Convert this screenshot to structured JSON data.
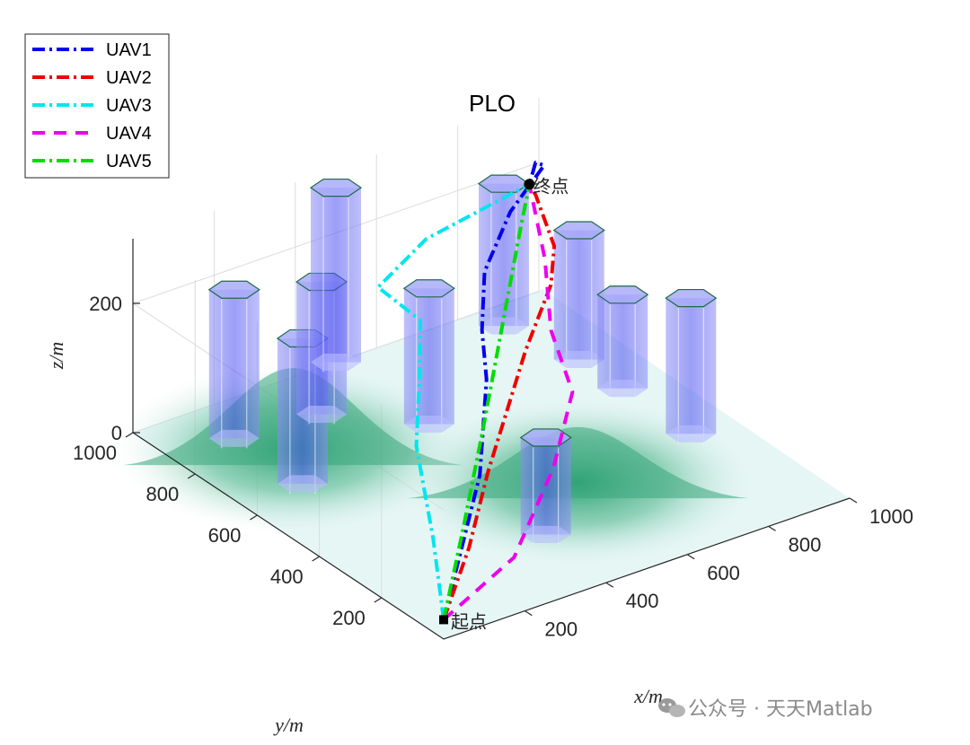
{
  "chart_data": {
    "type": "line",
    "subtype": "3d-trajectory",
    "title": "PLO",
    "xlabel": "x/m",
    "ylabel": "y/m",
    "zlabel": "z/m",
    "xlim": [
      0,
      1000
    ],
    "ylim": [
      0,
      1000
    ],
    "zlim": [
      0,
      300
    ],
    "x_ticks": [
      "200",
      "400",
      "600",
      "800",
      "1000"
    ],
    "y_ticks": [
      "200",
      "400",
      "600",
      "800",
      "1000"
    ],
    "z_ticks": [
      "0",
      "200"
    ],
    "legend_position": "top-left",
    "start_label": "起点",
    "end_label": "终点",
    "start": [
      0,
      0,
      30
    ],
    "end": [
      900,
      900,
      220
    ],
    "series": [
      {
        "name": "UAV1",
        "color": "#0000ee",
        "style": "dash-dot",
        "x": [
          0,
          200,
          380,
          450,
          500,
          560,
          700,
          860,
          900,
          900
        ],
        "y": [
          0,
          200,
          380,
          450,
          530,
          600,
          700,
          800,
          880,
          900
        ],
        "z": [
          30,
          40,
          50,
          160,
          200,
          255,
          285,
          290,
          260,
          220
        ]
      },
      {
        "name": "UAV2",
        "color": "#ee0000",
        "style": "dash-dot",
        "x": [
          0,
          200,
          400,
          520,
          600,
          800,
          900,
          900,
          900
        ],
        "y": [
          0,
          180,
          380,
          480,
          520,
          700,
          820,
          880,
          900
        ],
        "z": [
          30,
          40,
          50,
          80,
          150,
          150,
          150,
          210,
          220
        ]
      },
      {
        "name": "UAV3",
        "color": "#00e6ee",
        "style": "dash-dot",
        "x": [
          0,
          150,
          300,
          400,
          440,
          420,
          600,
          900
        ],
        "y": [
          0,
          230,
          480,
          600,
          650,
          760,
          840,
          900
        ],
        "z": [
          30,
          50,
          80,
          130,
          190,
          210,
          220,
          220
        ]
      },
      {
        "name": "UAV4",
        "color": "#ee00ee",
        "style": "dashed",
        "x": [
          0,
          250,
          500,
          700,
          800,
          900,
          900
        ],
        "y": [
          0,
          100,
          300,
          500,
          700,
          850,
          900
        ],
        "z": [
          30,
          40,
          60,
          70,
          80,
          120,
          220
        ]
      },
      {
        "name": "UAV5",
        "color": "#00dd00",
        "style": "dash-dot",
        "x": [
          0,
          200,
          400,
          600,
          800,
          900
        ],
        "y": [
          0,
          200,
          400,
          600,
          800,
          900
        ],
        "z": [
          30,
          60,
          100,
          150,
          200,
          220
        ]
      }
    ],
    "obstacles": [
      {
        "x": 150,
        "y": 650,
        "h": 225
      },
      {
        "x": 150,
        "y": 870,
        "h": 230
      },
      {
        "x": 350,
        "y": 850,
        "h": 205
      },
      {
        "x": 500,
        "y": 700,
        "h": 210
      },
      {
        "x": 500,
        "y": 1000,
        "h": 270
      },
      {
        "x": 420,
        "y": 220,
        "h": 150
      },
      {
        "x": 860,
        "y": 930,
        "h": 220
      },
      {
        "x": 900,
        "y": 740,
        "h": 200
      },
      {
        "x": 900,
        "y": 600,
        "h": 145
      },
      {
        "x": 900,
        "y": 380,
        "h": 210
      }
    ],
    "terrain_peaks": [
      {
        "x": 180,
        "y": 720,
        "z": 150
      },
      {
        "x": 560,
        "y": 300,
        "z": 110
      }
    ]
  },
  "watermark": {
    "icon": "wechat-icon",
    "text": "公众号 · 天天Matlab"
  }
}
